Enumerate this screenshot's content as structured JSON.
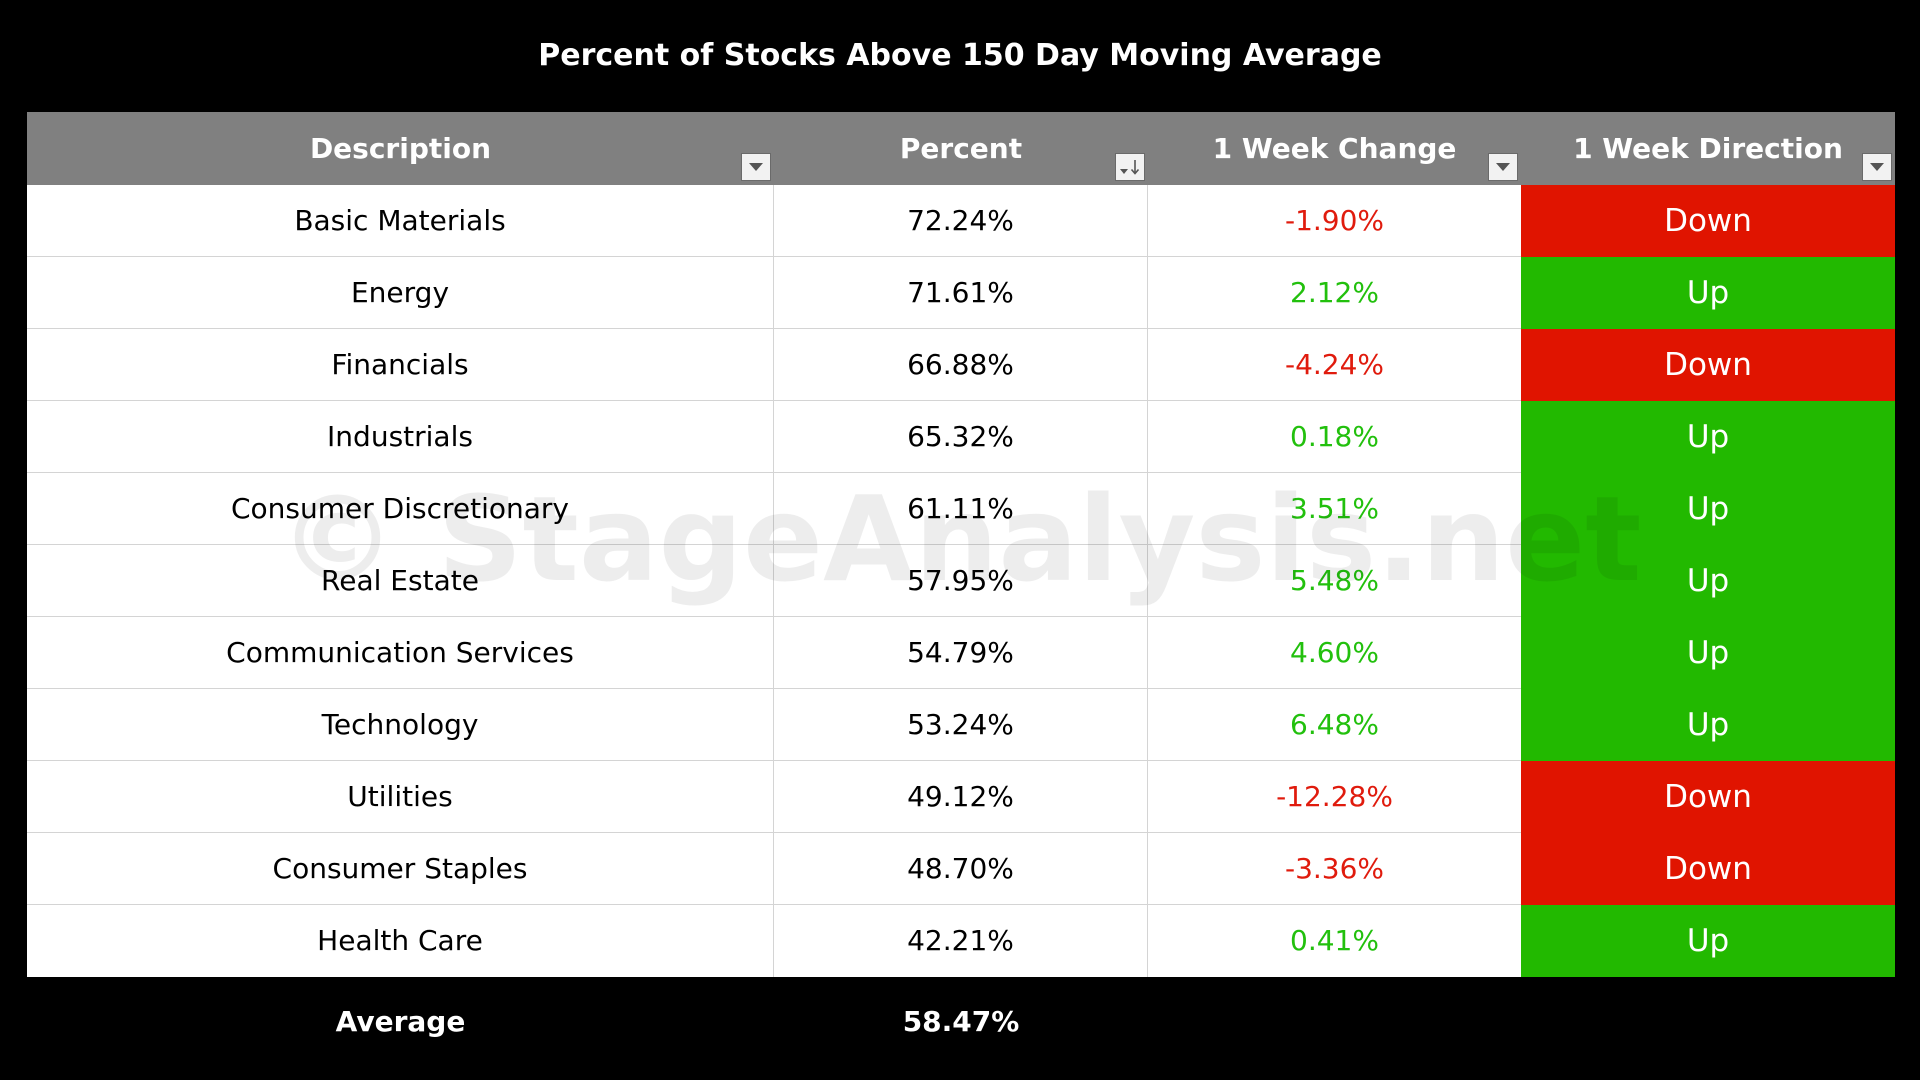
{
  "title": "Percent of Stocks Above 150 Day Moving Average",
  "watermark": "© StageAnalysis.net",
  "colors": {
    "header_bg": "#808080",
    "down_bg": "#e01400",
    "up_bg": "#22b900",
    "negative_text": "#e01b0d",
    "positive_text": "#22c00d"
  },
  "header": {
    "description": "Description",
    "percent": "Percent",
    "week_change": "1 Week Change",
    "week_direction": "1 Week Direction"
  },
  "icons": {
    "description_filter": "filter-dropdown-icon",
    "percent_filter": "sort-descending-icon",
    "week_change_filter": "filter-dropdown-icon",
    "week_direction_filter": "filter-dropdown-icon"
  },
  "rows": [
    {
      "description": "Basic Materials",
      "percent": "72.24%",
      "change": "-1.90%",
      "direction": "Down"
    },
    {
      "description": "Energy",
      "percent": "71.61%",
      "change": "2.12%",
      "direction": "Up"
    },
    {
      "description": "Financials",
      "percent": "66.88%",
      "change": "-4.24%",
      "direction": "Down"
    },
    {
      "description": "Industrials",
      "percent": "65.32%",
      "change": "0.18%",
      "direction": "Up"
    },
    {
      "description": "Consumer Discretionary",
      "percent": "61.11%",
      "change": "3.51%",
      "direction": "Up"
    },
    {
      "description": "Real Estate",
      "percent": "57.95%",
      "change": "5.48%",
      "direction": "Up"
    },
    {
      "description": "Communication Services",
      "percent": "54.79%",
      "change": "4.60%",
      "direction": "Up"
    },
    {
      "description": "Technology",
      "percent": "53.24%",
      "change": "6.48%",
      "direction": "Up"
    },
    {
      "description": "Utilities",
      "percent": "49.12%",
      "change": "-12.28%",
      "direction": "Down"
    },
    {
      "description": "Consumer Staples",
      "percent": "48.70%",
      "change": "-3.36%",
      "direction": "Down"
    },
    {
      "description": "Health Care",
      "percent": "42.21%",
      "change": "0.41%",
      "direction": "Up"
    }
  ],
  "footer": {
    "label": "Average",
    "value": "58.47%"
  },
  "chart_data": {
    "type": "table",
    "title": "Percent of Stocks Above 150 Day Moving Average",
    "columns": [
      "Description",
      "Percent",
      "1 Week Change",
      "1 Week Direction"
    ],
    "rows": [
      [
        "Basic Materials",
        72.24,
        -1.9,
        "Down"
      ],
      [
        "Energy",
        71.61,
        2.12,
        "Up"
      ],
      [
        "Financials",
        66.88,
        -4.24,
        "Down"
      ],
      [
        "Industrials",
        65.32,
        0.18,
        "Up"
      ],
      [
        "Consumer Discretionary",
        61.11,
        3.51,
        "Up"
      ],
      [
        "Real Estate",
        57.95,
        5.48,
        "Up"
      ],
      [
        "Communication Services",
        54.79,
        4.6,
        "Up"
      ],
      [
        "Technology",
        53.24,
        6.48,
        "Up"
      ],
      [
        "Utilities",
        49.12,
        -12.28,
        "Down"
      ],
      [
        "Consumer Staples",
        48.7,
        -3.36,
        "Down"
      ],
      [
        "Health Care",
        42.21,
        0.41,
        "Up"
      ]
    ],
    "average_label": "Average",
    "average_percent": 58.47
  }
}
